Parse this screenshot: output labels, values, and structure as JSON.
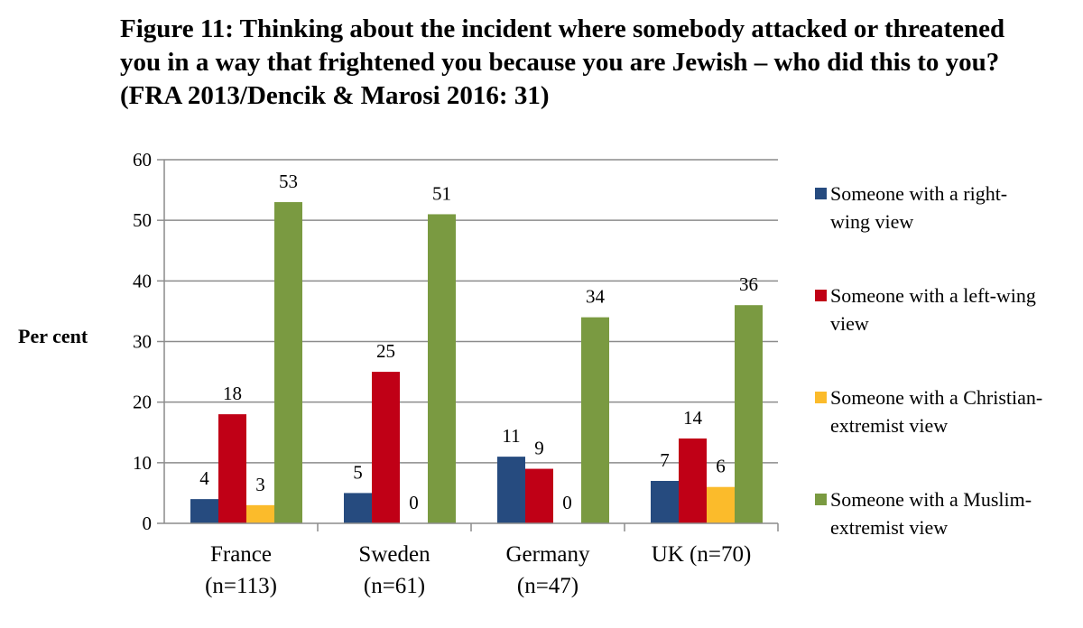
{
  "chart_data": {
    "type": "bar",
    "title": "Figure 11: Thinking about the incident where somebody attacked or threatened you in a way that frightened you because you are Jewish – who did this to you? (FRA 2013/Dencik & Marosi 2016: 31)",
    "ylabel": "Per cent",
    "xlabel": "",
    "ylim": [
      0,
      60
    ],
    "yticks": [
      0,
      10,
      20,
      30,
      40,
      50,
      60
    ],
    "grid": true,
    "legend_position": "right",
    "categories": [
      [
        "France",
        "(n=113)"
      ],
      [
        "Sweden",
        "(n=61)"
      ],
      [
        "Germany",
        "(n=47)"
      ],
      [
        "UK (n=70)"
      ]
    ],
    "series": [
      {
        "name": [
          "Someone with a right-",
          "wing view"
        ],
        "color": "#264b7f",
        "values": [
          4,
          5,
          11,
          7
        ]
      },
      {
        "name": [
          "Someone with a left-wing",
          "view"
        ],
        "color": "#c00016",
        "values": [
          18,
          25,
          9,
          14
        ]
      },
      {
        "name": [
          "Someone with a Christian-",
          "extremist view"
        ],
        "color": "#fbbb2b",
        "values": [
          3,
          0,
          0,
          6
        ]
      },
      {
        "name": [
          "Someone with a Muslim-",
          "extremist view"
        ],
        "color": "#7a9a41",
        "values": [
          53,
          51,
          34,
          36
        ]
      }
    ]
  }
}
